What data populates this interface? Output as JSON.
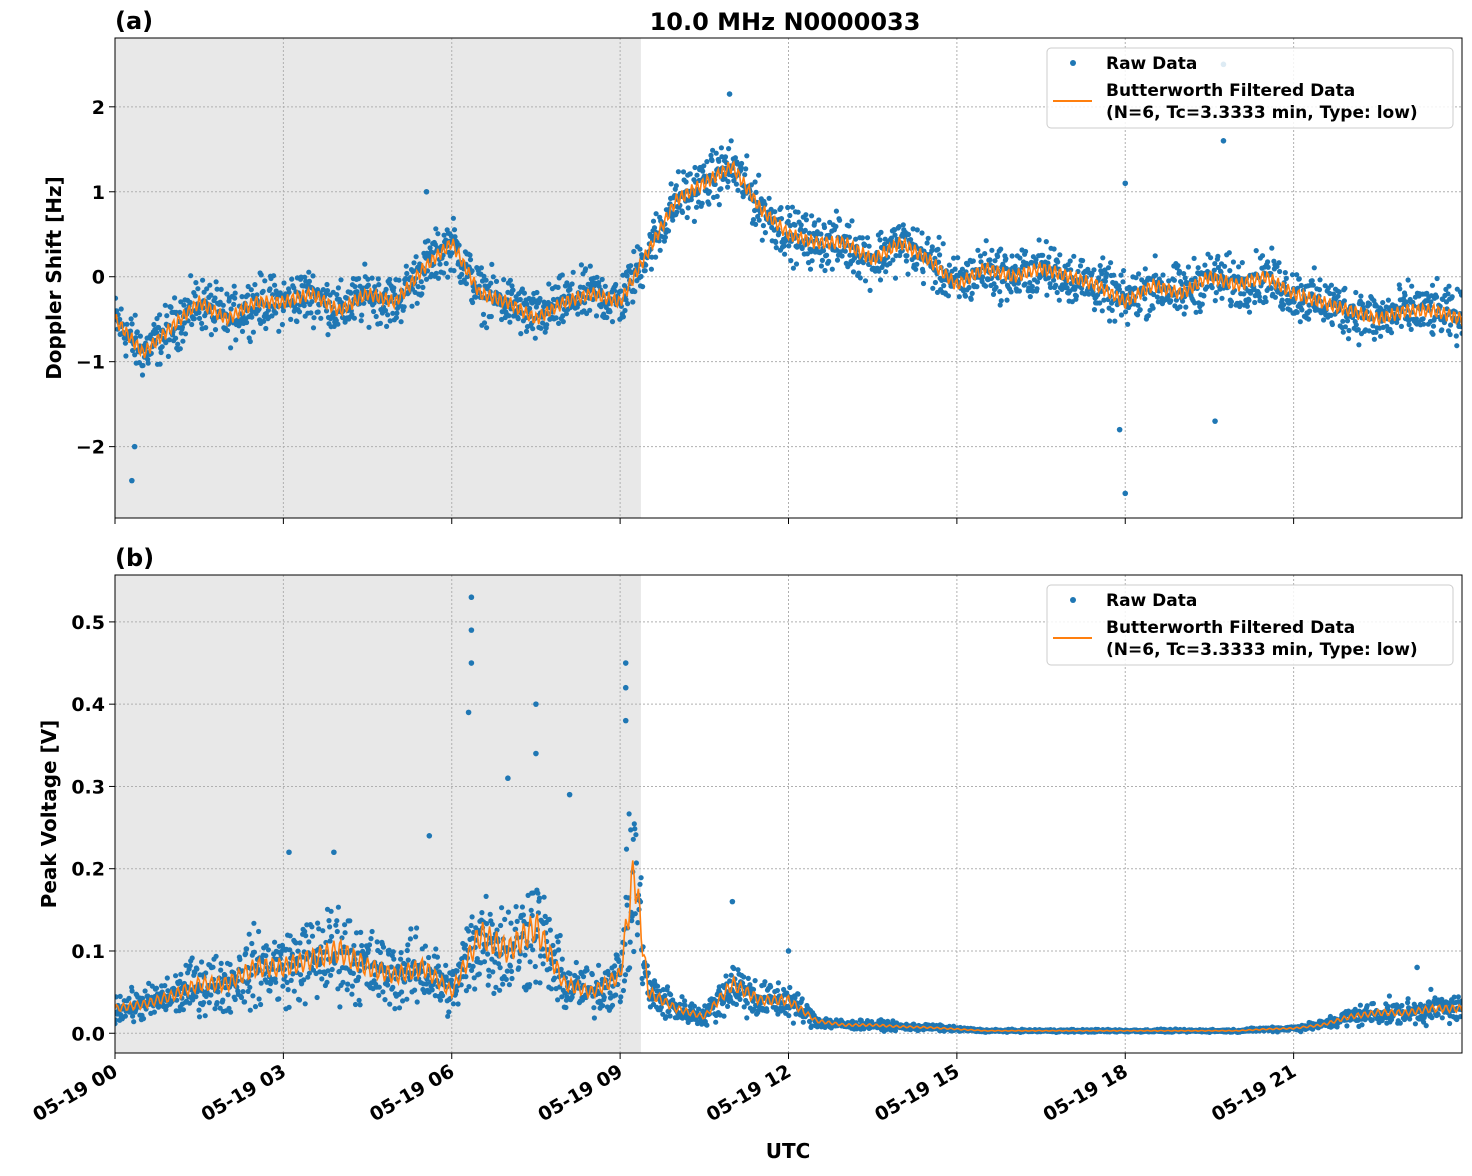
{
  "title": "10.0 MHz N0000033",
  "colors": {
    "raw": "#1f77b4",
    "filtered": "#ff7f0e",
    "night_shade": "#e8e8e8",
    "grid": "#b0b0b0"
  },
  "legend": {
    "raw_label": "Raw Data",
    "filtered_label_line1": "Butterworth Filtered Data",
    "filtered_label_line2": "(N=6, Tc=3.3333 min, Type: low)",
    "placement": "top-right"
  },
  "xaxis": {
    "label": "UTC",
    "range_hours": [
      0,
      24
    ],
    "ticks_hours": [
      0,
      3,
      6,
      9,
      12,
      15,
      18,
      21
    ],
    "tick_labels": [
      "05-19 00",
      "05-19 03",
      "05-19 06",
      "05-19 09",
      "05-19 12",
      "05-19 15",
      "05-19 18",
      "05-19 21"
    ]
  },
  "chart_data": [
    {
      "type": "scatter+line",
      "panel_label": "(a)",
      "ylabel": "Doppler Shift [Hz]",
      "ylim": [
        -2.84,
        2.81
      ],
      "yticks": [
        -2,
        -1,
        0,
        1,
        2
      ],
      "ytick_labels": [
        "−2",
        "−1",
        "0",
        "1",
        "2"
      ],
      "grid": true,
      "shaded_hours": [
        0,
        9.37
      ],
      "x_hours": [
        0,
        0.5,
        1,
        1.5,
        2,
        2.5,
        3,
        3.5,
        4,
        4.5,
        5,
        5.5,
        6,
        6.5,
        7,
        7.5,
        8,
        8.5,
        9,
        9.5,
        10,
        10.5,
        11,
        11.5,
        12,
        12.5,
        13,
        13.5,
        14,
        14.5,
        15,
        15.5,
        16,
        16.5,
        17,
        17.5,
        18,
        18.5,
        19,
        19.5,
        20,
        20.5,
        21,
        21.5,
        22,
        22.5,
        23,
        23.5,
        24
      ],
      "filtered": [
        -0.5,
        -0.9,
        -0.6,
        -0.3,
        -0.5,
        -0.3,
        -0.3,
        -0.2,
        -0.4,
        -0.2,
        -0.3,
        0.1,
        0.4,
        -0.2,
        -0.3,
        -0.5,
        -0.3,
        -0.2,
        -0.3,
        0.3,
        0.9,
        1.1,
        1.3,
        0.8,
        0.5,
        0.4,
        0.4,
        0.2,
        0.4,
        0.2,
        -0.1,
        0.1,
        0.0,
        0.1,
        0.0,
        -0.1,
        -0.3,
        -0.1,
        -0.2,
        0.0,
        -0.1,
        0.0,
        -0.2,
        -0.3,
        -0.4,
        -0.5,
        -0.4,
        -0.4,
        -0.5
      ],
      "raw_spread": 0.45,
      "raw_outliers": [
        [
          0.3,
          -2.4
        ],
        [
          0.35,
          -2.0
        ],
        [
          5.55,
          1.0
        ],
        [
          10.95,
          2.15
        ],
        [
          17.9,
          -1.8
        ],
        [
          18.0,
          -2.55
        ],
        [
          18.0,
          1.1
        ],
        [
          19.6,
          -1.7
        ],
        [
          19.75,
          2.5
        ],
        [
          19.75,
          1.6
        ]
      ]
    },
    {
      "type": "scatter+line",
      "panel_label": "(b)",
      "ylabel": "Peak Voltage [V]",
      "ylim": [
        -0.024,
        0.557
      ],
      "yticks": [
        0.0,
        0.1,
        0.2,
        0.3,
        0.4,
        0.5
      ],
      "ytick_labels": [
        "0.0",
        "0.1",
        "0.2",
        "0.3",
        "0.4",
        "0.5"
      ],
      "grid": true,
      "shaded_hours": [
        0,
        9.37
      ],
      "x_hours": [
        0,
        0.5,
        1,
        1.5,
        2,
        2.5,
        3,
        3.5,
        4,
        4.5,
        5,
        5.5,
        6,
        6.5,
        7,
        7.5,
        8,
        8.5,
        9,
        9.25,
        9.5,
        10,
        10.5,
        11,
        11.5,
        12,
        12.5,
        13,
        13.5,
        14,
        14.5,
        15,
        15.5,
        16,
        17,
        18,
        19,
        20,
        20.5,
        21,
        21.5,
        22,
        22.5,
        23,
        23.5,
        24
      ],
      "filtered": [
        0.03,
        0.035,
        0.045,
        0.06,
        0.06,
        0.08,
        0.08,
        0.09,
        0.1,
        0.08,
        0.07,
        0.08,
        0.05,
        0.12,
        0.1,
        0.13,
        0.06,
        0.05,
        0.07,
        0.2,
        0.05,
        0.03,
        0.02,
        0.06,
        0.04,
        0.04,
        0.015,
        0.01,
        0.01,
        0.008,
        0.007,
        0.005,
        0.003,
        0.003,
        0.003,
        0.003,
        0.003,
        0.003,
        0.005,
        0.006,
        0.01,
        0.02,
        0.025,
        0.025,
        0.03,
        0.03
      ],
      "raw_spread": 0.6,
      "raw_outliers": [
        [
          6.35,
          0.53
        ],
        [
          6.35,
          0.49
        ],
        [
          6.35,
          0.45
        ],
        [
          6.3,
          0.39
        ],
        [
          7.0,
          0.31
        ],
        [
          7.5,
          0.4
        ],
        [
          7.5,
          0.34
        ],
        [
          8.1,
          0.29
        ],
        [
          9.1,
          0.45
        ],
        [
          9.1,
          0.42
        ],
        [
          9.1,
          0.38
        ],
        [
          5.6,
          0.24
        ],
        [
          3.9,
          0.22
        ],
        [
          3.1,
          0.22
        ],
        [
          11.0,
          0.16
        ],
        [
          12.0,
          0.1
        ],
        [
          23.2,
          0.08
        ]
      ]
    }
  ]
}
